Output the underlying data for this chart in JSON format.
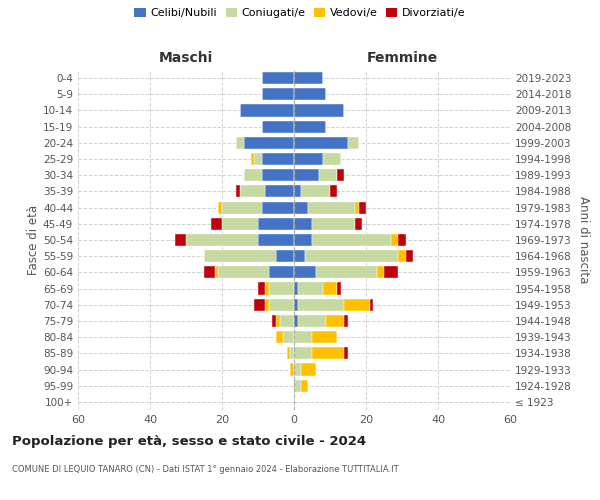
{
  "age_groups": [
    "100+",
    "95-99",
    "90-94",
    "85-89",
    "80-84",
    "75-79",
    "70-74",
    "65-69",
    "60-64",
    "55-59",
    "50-54",
    "45-49",
    "40-44",
    "35-39",
    "30-34",
    "25-29",
    "20-24",
    "15-19",
    "10-14",
    "5-9",
    "0-4"
  ],
  "birth_years": [
    "≤ 1923",
    "1924-1928",
    "1929-1933",
    "1934-1938",
    "1939-1943",
    "1944-1948",
    "1949-1953",
    "1954-1958",
    "1959-1963",
    "1964-1968",
    "1969-1973",
    "1974-1978",
    "1979-1983",
    "1984-1988",
    "1989-1993",
    "1994-1998",
    "1999-2003",
    "2004-2008",
    "2009-2013",
    "2014-2018",
    "2019-2023"
  ],
  "male": {
    "celibi": [
      0,
      0,
      0,
      0,
      0,
      0,
      0,
      0,
      7,
      5,
      10,
      10,
      9,
      8,
      9,
      9,
      14,
      9,
      15,
      9,
      9
    ],
    "coniugati": [
      0,
      0,
      0,
      1,
      3,
      4,
      7,
      7,
      14,
      20,
      20,
      10,
      11,
      7,
      5,
      2,
      2,
      0,
      0,
      0,
      0
    ],
    "vedovi": [
      0,
      0,
      1,
      1,
      2,
      1,
      1,
      1,
      1,
      0,
      0,
      0,
      1,
      0,
      0,
      1,
      0,
      0,
      0,
      0,
      0
    ],
    "divorziati": [
      0,
      0,
      0,
      0,
      0,
      1,
      3,
      2,
      3,
      0,
      3,
      3,
      0,
      1,
      0,
      0,
      0,
      0,
      0,
      0,
      0
    ]
  },
  "female": {
    "nubili": [
      0,
      0,
      0,
      0,
      0,
      1,
      1,
      1,
      6,
      3,
      5,
      5,
      4,
      2,
      7,
      8,
      15,
      9,
      14,
      9,
      8
    ],
    "coniugate": [
      0,
      2,
      2,
      5,
      5,
      8,
      13,
      7,
      17,
      26,
      22,
      12,
      13,
      8,
      5,
      5,
      3,
      0,
      0,
      0,
      0
    ],
    "vedove": [
      0,
      2,
      4,
      9,
      7,
      5,
      7,
      4,
      2,
      2,
      2,
      0,
      1,
      0,
      0,
      0,
      0,
      0,
      0,
      0,
      0
    ],
    "divorziate": [
      0,
      0,
      0,
      1,
      0,
      1,
      1,
      1,
      4,
      2,
      2,
      2,
      2,
      2,
      2,
      0,
      0,
      0,
      0,
      0,
      0
    ]
  },
  "colors": {
    "celibi": "#4472c4",
    "coniugati": "#c5d9a0",
    "vedovi": "#ffc000",
    "divorziati": "#c0000b"
  },
  "xlim": 60,
  "title": "Popolazione per età, sesso e stato civile - 2024",
  "subtitle": "COMUNE DI LEQUIO TANARO (CN) - Dati ISTAT 1° gennaio 2024 - Elaborazione TUTTITALIA.IT",
  "xlabel_left": "Maschi",
  "xlabel_right": "Femmine",
  "ylabel_left": "Fasce di età",
  "ylabel_right": "Anni di nascita",
  "legend_labels": [
    "Celibi/Nubili",
    "Coniugati/e",
    "Vedovi/e",
    "Divorziati/e"
  ],
  "background_color": "#ffffff",
  "grid_color": "#cccccc"
}
